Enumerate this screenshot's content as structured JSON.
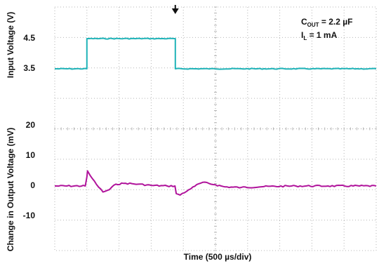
{
  "chart_data": [
    {
      "type": "line",
      "ylabel": "Input Voltage (V)",
      "yticks": [
        4.5,
        3.5
      ],
      "ytick_labels": [
        "4.5",
        "3.5"
      ],
      "series": [
        {
          "color": "#1fb3b8",
          "x": [
            0,
            1,
            1,
            3.75,
            3.75,
            10
          ],
          "y": [
            3.5,
            3.5,
            4.5,
            4.5,
            3.5,
            3.5
          ]
        }
      ],
      "annotations": {
        "line1_main": "C",
        "line1_sub": "OUT",
        "line1_rest": " = 2.2 µF",
        "line2_main": "I",
        "line2_sub": "L",
        "line2_rest": " = 1 mA"
      }
    },
    {
      "type": "line",
      "ylabel": "Change in Output Voltage (mV)",
      "xlabel": "Time (500 µs/div)",
      "yticks": [
        20,
        10,
        0,
        -10
      ],
      "ytick_labels": [
        "20",
        "10",
        "0",
        "-10"
      ],
      "series": [
        {
          "color": "#b0139b",
          "x": [
            0,
            0.95,
            1.0,
            1.02,
            1.1,
            1.3,
            1.5,
            1.7,
            1.9,
            2.2,
            2.6,
            3.0,
            3.5,
            3.74,
            3.78,
            3.9,
            4.1,
            4.3,
            4.6,
            5.0,
            5.3,
            5.8,
            6.5,
            7.5,
            8.5,
            10
          ],
          "y": [
            0,
            0,
            3,
            5,
            3.5,
            0.5,
            -2,
            -1.2,
            0.6,
            0.9,
            0.6,
            0.2,
            0,
            0,
            -2.5,
            -3,
            -1.8,
            -0.3,
            1.2,
            0.4,
            -0.3,
            -0.5,
            -0.2,
            0,
            0,
            0
          ]
        }
      ]
    }
  ],
  "marker": {
    "icon": "trigger-arrow-icon",
    "x": 3.75
  },
  "colors": {
    "grid": "#b5b5b5",
    "input_trace": "#1fb3b8",
    "output_trace": "#b0139b"
  }
}
